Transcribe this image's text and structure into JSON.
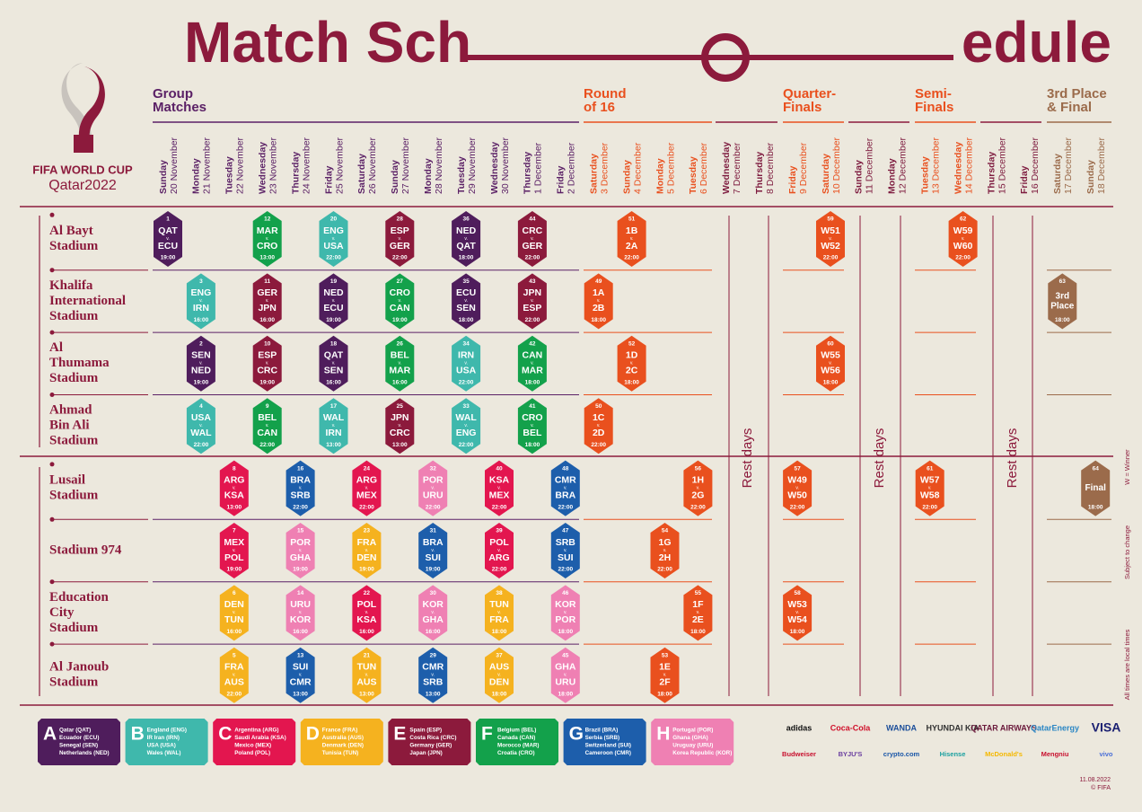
{
  "header": {
    "title_left": "Match Sch",
    "title_right": "edule",
    "logo_top": "FIFA WORLD CUP",
    "logo_bottom": "Qatar2022"
  },
  "stages": [
    {
      "lines": [
        "Group",
        "Matches"
      ],
      "color": "#5b2166"
    },
    {
      "lines": [
        "Round",
        "of 16"
      ],
      "color": "#e9501e"
    },
    {
      "lines": [
        "Quarter-",
        "Finals"
      ],
      "color": "#e9501e"
    },
    {
      "lines": [
        "Semi-",
        "Finals"
      ],
      "color": "#e9501e"
    },
    {
      "lines": [
        "3rd Place",
        "& Final"
      ],
      "color": "#9b6b4b"
    }
  ],
  "dates": [
    {
      "day": "Sunday",
      "date": "20 November",
      "color": "#5b2166"
    },
    {
      "day": "Monday",
      "date": "21 November",
      "color": "#5b2166"
    },
    {
      "day": "Tuesday",
      "date": "22 November",
      "color": "#5b2166"
    },
    {
      "day": "Wednesday",
      "date": "23 November",
      "color": "#5b2166"
    },
    {
      "day": "Thursday",
      "date": "24 November",
      "color": "#5b2166"
    },
    {
      "day": "Friday",
      "date": "25 November",
      "color": "#5b2166"
    },
    {
      "day": "Saturday",
      "date": "26 November",
      "color": "#5b2166"
    },
    {
      "day": "Sunday",
      "date": "27 November",
      "color": "#5b2166"
    },
    {
      "day": "Monday",
      "date": "28 November",
      "color": "#5b2166"
    },
    {
      "day": "Tuesday",
      "date": "29 November",
      "color": "#5b2166"
    },
    {
      "day": "Wednesday",
      "date": "30 November",
      "color": "#5b2166"
    },
    {
      "day": "Thursday",
      "date": "1 December",
      "color": "#5b2166"
    },
    {
      "day": "Friday",
      "date": "2 December",
      "color": "#5b2166"
    },
    {
      "day": "Saturday",
      "date": "3 December",
      "color": "#e9501e"
    },
    {
      "day": "Sunday",
      "date": "4 December",
      "color": "#e9501e"
    },
    {
      "day": "Monday",
      "date": "5 December",
      "color": "#e9501e"
    },
    {
      "day": "Tuesday",
      "date": "6 December",
      "color": "#e9501e"
    },
    {
      "day": "Wednesday",
      "date": "7 December",
      "color": "#7d1a3e"
    },
    {
      "day": "Thursday",
      "date": "8 December",
      "color": "#7d1a3e"
    },
    {
      "day": "Friday",
      "date": "9 December",
      "color": "#e9501e"
    },
    {
      "day": "Saturday",
      "date": "10 December",
      "color": "#e9501e"
    },
    {
      "day": "Sunday",
      "date": "11 December",
      "color": "#7d1a3e"
    },
    {
      "day": "Monday",
      "date": "12 December",
      "color": "#7d1a3e"
    },
    {
      "day": "Tuesday",
      "date": "13 December",
      "color": "#e9501e"
    },
    {
      "day": "Wednesday",
      "date": "14 December",
      "color": "#e9501e"
    },
    {
      "day": "Thursday",
      "date": "15 December",
      "color": "#7d1a3e"
    },
    {
      "day": "Friday",
      "date": "16 December",
      "color": "#7d1a3e"
    },
    {
      "day": "Saturday",
      "date": "17 December",
      "color": "#9b6b4b"
    },
    {
      "day": "Sunday",
      "date": "18 December",
      "color": "#9b6b4b"
    }
  ],
  "vs": "v.",
  "rest_days": [
    "Rest days",
    "Rest days",
    "Rest days"
  ],
  "stadiums": [
    {
      "name": [
        "Al Bayt",
        "Stadium"
      ],
      "days": [
        {
          "no": 1,
          "home": "QAT",
          "away": "ECU",
          "time": "19:00",
          "color": "#4f1d5c"
        },
        null,
        null,
        {
          "no": 12,
          "home": "MAR",
          "away": "CRO",
          "time": "13:00",
          "color": "#13a14b"
        },
        null,
        {
          "no": 20,
          "home": "ENG",
          "away": "USA",
          "time": "22:00",
          "color": "#3fb8ac"
        },
        null,
        {
          "no": 28,
          "home": "ESP",
          "away": "GER",
          "time": "22:00",
          "color": "#8c1a3c"
        },
        null,
        {
          "no": 36,
          "home": "NED",
          "away": "QAT",
          "time": "18:00",
          "color": "#4f1d5c"
        },
        null,
        {
          "no": 44,
          "home": "CRC",
          "away": "GER",
          "time": "22:00",
          "color": "#8c1a3c"
        },
        null,
        null,
        {
          "no": 51,
          "home": "1B",
          "away": "2A",
          "time": "22:00",
          "color": "#e9501e"
        },
        null,
        null,
        null,
        null,
        null,
        {
          "no": 59,
          "home": "W51",
          "away": "W52",
          "time": "22:00",
          "color": "#e9501e"
        },
        null,
        null,
        null,
        {
          "no": 62,
          "home": "W59",
          "away": "W60",
          "time": "22:00",
          "color": "#e9501e"
        },
        null,
        null,
        null,
        null
      ]
    },
    {
      "name": [
        "Khalifa",
        "International",
        "Stadium"
      ],
      "days": [
        null,
        {
          "no": 3,
          "home": "ENG",
          "away": "IRN",
          "time": "16:00",
          "color": "#3fb8ac"
        },
        null,
        {
          "no": 11,
          "home": "GER",
          "away": "JPN",
          "time": "16:00",
          "color": "#8c1a3c"
        },
        null,
        {
          "no": 19,
          "home": "NED",
          "away": "ECU",
          "time": "19:00",
          "color": "#4f1d5c"
        },
        null,
        {
          "no": 27,
          "home": "CRO",
          "away": "CAN",
          "time": "19:00",
          "color": "#13a14b"
        },
        null,
        {
          "no": 35,
          "home": "ECU",
          "away": "SEN",
          "time": "18:00",
          "color": "#4f1d5c"
        },
        null,
        {
          "no": 43,
          "home": "JPN",
          "away": "ESP",
          "time": "22:00",
          "color": "#8c1a3c"
        },
        null,
        {
          "no": 49,
          "home": "1A",
          "away": "2B",
          "time": "18:00",
          "color": "#e9501e"
        },
        null,
        null,
        null,
        null,
        null,
        null,
        null,
        null,
        null,
        null,
        null,
        null,
        null,
        {
          "no": 63,
          "label": [
            "3rd",
            "Place"
          ],
          "time": "18:00",
          "color": "#9b6b4b"
        },
        null
      ]
    },
    {
      "name": [
        "Al",
        "Thumama",
        "Stadium"
      ],
      "days": [
        null,
        {
          "no": 2,
          "home": "SEN",
          "away": "NED",
          "time": "19:00",
          "color": "#4f1d5c"
        },
        null,
        {
          "no": 10,
          "home": "ESP",
          "away": "CRC",
          "time": "19:00",
          "color": "#8c1a3c"
        },
        null,
        {
          "no": 18,
          "home": "QAT",
          "away": "SEN",
          "time": "16:00",
          "color": "#4f1d5c"
        },
        null,
        {
          "no": 26,
          "home": "BEL",
          "away": "MAR",
          "time": "16:00",
          "color": "#13a14b"
        },
        null,
        {
          "no": 34,
          "home": "IRN",
          "away": "USA",
          "time": "22:00",
          "color": "#3fb8ac"
        },
        null,
        {
          "no": 42,
          "home": "CAN",
          "away": "MAR",
          "time": "18:00",
          "color": "#13a14b"
        },
        null,
        null,
        {
          "no": 52,
          "home": "1D",
          "away": "2C",
          "time": "18:00",
          "color": "#e9501e"
        },
        null,
        null,
        null,
        null,
        null,
        {
          "no": 60,
          "home": "W55",
          "away": "W56",
          "time": "18:00",
          "color": "#e9501e"
        },
        null,
        null,
        null,
        null,
        null,
        null,
        null,
        null
      ]
    },
    {
      "name": [
        "Ahmad",
        "Bin Ali",
        "Stadium"
      ],
      "days": [
        null,
        {
          "no": 4,
          "home": "USA",
          "away": "WAL",
          "time": "22:00",
          "color": "#3fb8ac"
        },
        null,
        {
          "no": 9,
          "home": "BEL",
          "away": "CAN",
          "time": "22:00",
          "color": "#13a14b"
        },
        null,
        {
          "no": 17,
          "home": "WAL",
          "away": "IRN",
          "time": "13:00",
          "color": "#3fb8ac"
        },
        null,
        {
          "no": 25,
          "home": "JPN",
          "away": "CRC",
          "time": "13:00",
          "color": "#8c1a3c"
        },
        null,
        {
          "no": 33,
          "home": "WAL",
          "away": "ENG",
          "time": "22:00",
          "color": "#3fb8ac"
        },
        null,
        {
          "no": 41,
          "home": "CRO",
          "away": "BEL",
          "time": "18:00",
          "color": "#13a14b"
        },
        null,
        {
          "no": 50,
          "home": "1C",
          "away": "2D",
          "time": "22:00",
          "color": "#e9501e"
        },
        null,
        null,
        null,
        null,
        null,
        null,
        null,
        null,
        null,
        null,
        null,
        null,
        null,
        null,
        null
      ]
    },
    {
      "name": [
        "Lusail",
        "Stadium"
      ],
      "days": [
        null,
        null,
        {
          "no": 8,
          "home": "ARG",
          "away": "KSA",
          "time": "13:00",
          "color": "#e3164f"
        },
        null,
        {
          "no": 16,
          "home": "BRA",
          "away": "SRB",
          "time": "22:00",
          "color": "#1d5eab"
        },
        null,
        {
          "no": 24,
          "home": "ARG",
          "away": "MEX",
          "time": "22:00",
          "color": "#e3164f"
        },
        null,
        {
          "no": 32,
          "home": "POR",
          "away": "URU",
          "time": "22:00",
          "color": "#ef80b3"
        },
        null,
        {
          "no": 40,
          "home": "KSA",
          "away": "MEX",
          "time": "22:00",
          "color": "#e3164f"
        },
        null,
        {
          "no": 48,
          "home": "CMR",
          "away": "BRA",
          "time": "22:00",
          "color": "#1d5eab"
        },
        null,
        null,
        null,
        {
          "no": 56,
          "home": "1H",
          "away": "2G",
          "time": "22:00",
          "color": "#e9501e"
        },
        null,
        null,
        {
          "no": 57,
          "home": "W49",
          "away": "W50",
          "time": "22:00",
          "color": "#e9501e"
        },
        null,
        null,
        null,
        {
          "no": 61,
          "home": "W57",
          "away": "W58",
          "time": "22:00",
          "color": "#e9501e"
        },
        null,
        null,
        null,
        null,
        {
          "no": 64,
          "label": [
            "Final"
          ],
          "time": "18:00",
          "color": "#9b6b4b"
        }
      ]
    },
    {
      "name": [
        "Stadium 974"
      ],
      "days": [
        null,
        null,
        {
          "no": 7,
          "home": "MEX",
          "away": "POL",
          "time": "19:00",
          "color": "#e3164f"
        },
        null,
        {
          "no": 15,
          "home": "POR",
          "away": "GHA",
          "time": "19:00",
          "color": "#ef80b3"
        },
        null,
        {
          "no": 23,
          "home": "FRA",
          "away": "DEN",
          "time": "19:00",
          "color": "#f5b21f"
        },
        null,
        {
          "no": 31,
          "home": "BRA",
          "away": "SUI",
          "time": "19:00",
          "color": "#1d5eab"
        },
        null,
        {
          "no": 39,
          "home": "POL",
          "away": "ARG",
          "time": "22:00",
          "color": "#e3164f"
        },
        null,
        {
          "no": 47,
          "home": "SRB",
          "away": "SUI",
          "time": "22:00",
          "color": "#1d5eab"
        },
        null,
        null,
        {
          "no": 54,
          "home": "1G",
          "away": "2H",
          "time": "22:00",
          "color": "#e9501e"
        },
        null,
        null,
        null,
        null,
        null,
        null,
        null,
        null,
        null,
        null,
        null,
        null,
        null
      ]
    },
    {
      "name": [
        "Education",
        "City",
        "Stadium"
      ],
      "days": [
        null,
        null,
        {
          "no": 6,
          "home": "DEN",
          "away": "TUN",
          "time": "16:00",
          "color": "#f5b21f"
        },
        null,
        {
          "no": 14,
          "home": "URU",
          "away": "KOR",
          "time": "16:00",
          "color": "#ef80b3"
        },
        null,
        {
          "no": 22,
          "home": "POL",
          "away": "KSA",
          "time": "16:00",
          "color": "#e3164f"
        },
        null,
        {
          "no": 30,
          "home": "KOR",
          "away": "GHA",
          "time": "16:00",
          "color": "#ef80b3"
        },
        null,
        {
          "no": 38,
          "home": "TUN",
          "away": "FRA",
          "time": "18:00",
          "color": "#f5b21f"
        },
        null,
        {
          "no": 46,
          "home": "KOR",
          "away": "POR",
          "time": "18:00",
          "color": "#ef80b3"
        },
        null,
        null,
        null,
        {
          "no": 55,
          "home": "1F",
          "away": "2E",
          "time": "18:00",
          "color": "#e9501e"
        },
        null,
        null,
        {
          "no": 58,
          "home": "W53",
          "away": "W54",
          "time": "18:00",
          "color": "#e9501e"
        },
        null,
        null,
        null,
        null,
        null,
        null,
        null,
        null,
        null
      ]
    },
    {
      "name": [
        "Al Janoub",
        "Stadium"
      ],
      "days": [
        null,
        null,
        {
          "no": 5,
          "home": "FRA",
          "away": "AUS",
          "time": "22:00",
          "color": "#f5b21f"
        },
        null,
        {
          "no": 13,
          "home": "SUI",
          "away": "CMR",
          "time": "13:00",
          "color": "#1d5eab"
        },
        null,
        {
          "no": 21,
          "home": "TUN",
          "away": "AUS",
          "time": "13:00",
          "color": "#f5b21f"
        },
        null,
        {
          "no": 29,
          "home": "CMR",
          "away": "SRB",
          "time": "13:00",
          "color": "#1d5eab"
        },
        null,
        {
          "no": 37,
          "home": "AUS",
          "away": "DEN",
          "time": "18:00",
          "color": "#f5b21f"
        },
        null,
        {
          "no": 45,
          "home": "GHA",
          "away": "URU",
          "time": "18:00",
          "color": "#ef80b3"
        },
        null,
        null,
        {
          "no": 53,
          "home": "1E",
          "away": "2F",
          "time": "18:00",
          "color": "#e9501e"
        },
        null,
        null,
        null,
        null,
        null,
        null,
        null,
        null,
        null,
        null,
        null,
        null,
        null
      ]
    }
  ],
  "groups": [
    {
      "letter": "A",
      "color": "#4f1d5c",
      "teams": [
        "Qatar (QAT)",
        "Ecuador (ECU)",
        "Senegal (SEN)",
        "Netherlands (NED)"
      ]
    },
    {
      "letter": "B",
      "color": "#3fb8ac",
      "teams": [
        "England (ENG)",
        "IR Iran (IRN)",
        "USA (USA)",
        "Wales (WAL)"
      ]
    },
    {
      "letter": "C",
      "color": "#e3164f",
      "teams": [
        "Argentina (ARG)",
        "Saudi Arabia (KSA)",
        "Mexico (MEX)",
        "Poland (POL)"
      ]
    },
    {
      "letter": "D",
      "color": "#f5b21f",
      "teams": [
        "France (FRA)",
        "Australia (AUS)",
        "Denmark (DEN)",
        "Tunisia (TUN)"
      ]
    },
    {
      "letter": "E",
      "color": "#8c1a3c",
      "teams": [
        "Spain (ESP)",
        "Costa Rica (CRC)",
        "Germany (GER)",
        "Japan (JPN)"
      ]
    },
    {
      "letter": "F",
      "color": "#13a14b",
      "teams": [
        "Belgium (BEL)",
        "Canada (CAN)",
        "Morocco (MAR)",
        "Croatia (CRO)"
      ]
    },
    {
      "letter": "G",
      "color": "#1d5eab",
      "teams": [
        "Brazil (BRA)",
        "Serbia (SRB)",
        "Switzerland (SUI)",
        "Cameroon (CMR)"
      ]
    },
    {
      "letter": "H",
      "color": "#ef80b3",
      "teams": [
        "Portugal (POR)",
        "Ghana (GHA)",
        "Uruguay (URU)",
        "Korea Republic (KOR)"
      ]
    }
  ],
  "sponsors": [
    [
      "adidas",
      "Coca-Cola",
      "WANDA",
      "HYUNDAI KIA",
      "QATAR AIRWAYS",
      "QatarEnergy",
      "VISA"
    ],
    [
      "Budweiser",
      "BYJU'S",
      "crypto.com",
      "Hisense",
      "McDonald's",
      "Mengniu",
      "vivo"
    ]
  ],
  "side_notes": [
    "W = Winner",
    "Subject to change",
    "All times are local times"
  ],
  "footer": {
    "date": "11.08.2022",
    "copyright": "© FIFA"
  }
}
